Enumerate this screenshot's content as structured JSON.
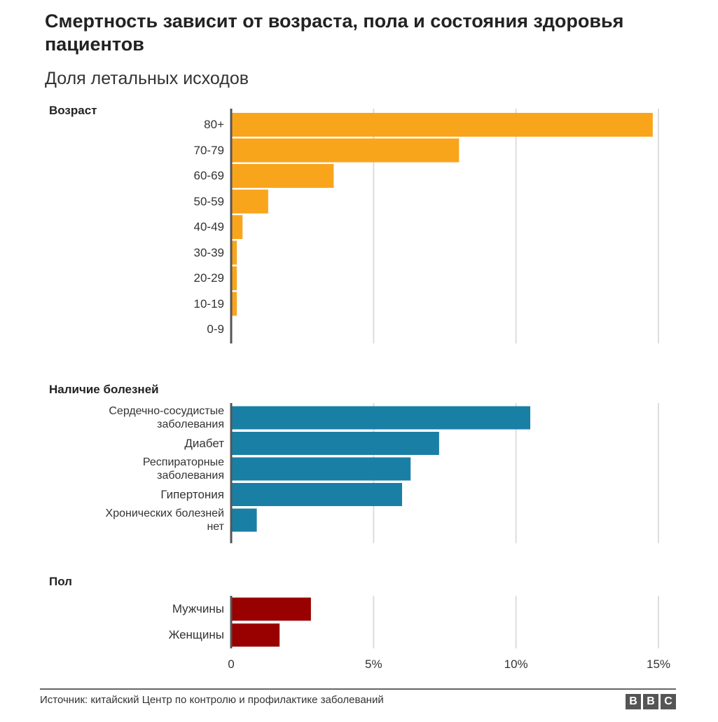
{
  "title": "Смертность зависит от возраста, пола и состояния здоровья пациентов",
  "subtitle": "Доля летальных исходов",
  "source": "Источник: китайский Центр по контролю и профилактике заболеваний",
  "logo": "BBC",
  "chart_data": {
    "type": "bar",
    "orientation": "horizontal",
    "xlim": [
      0,
      15
    ],
    "x_ticks": [
      "0",
      "5%",
      "10%",
      "15%"
    ],
    "grid": true,
    "groups": [
      {
        "name": "Возраст",
        "color": "#f9a51c",
        "categories": [
          "80+",
          "70-79",
          "60-69",
          "50-59",
          "40-49",
          "30-39",
          "20-29",
          "10-19",
          "0-9"
        ],
        "values": [
          14.8,
          8.0,
          3.6,
          1.3,
          0.4,
          0.2,
          0.2,
          0.2,
          0
        ]
      },
      {
        "name": "Наличие болезней",
        "color": "#1a7fa5",
        "categories": [
          "Сердечно-сосудистые заболевания",
          "Диабет",
          "Респираторные заболевания",
          "Гипертония",
          "Хронических болезней нет"
        ],
        "values": [
          10.5,
          7.3,
          6.3,
          6.0,
          0.9
        ]
      },
      {
        "name": "Пол",
        "color": "#990000",
        "categories": [
          "Мужчины",
          "Женщины"
        ],
        "values": [
          2.8,
          1.7
        ]
      }
    ]
  }
}
